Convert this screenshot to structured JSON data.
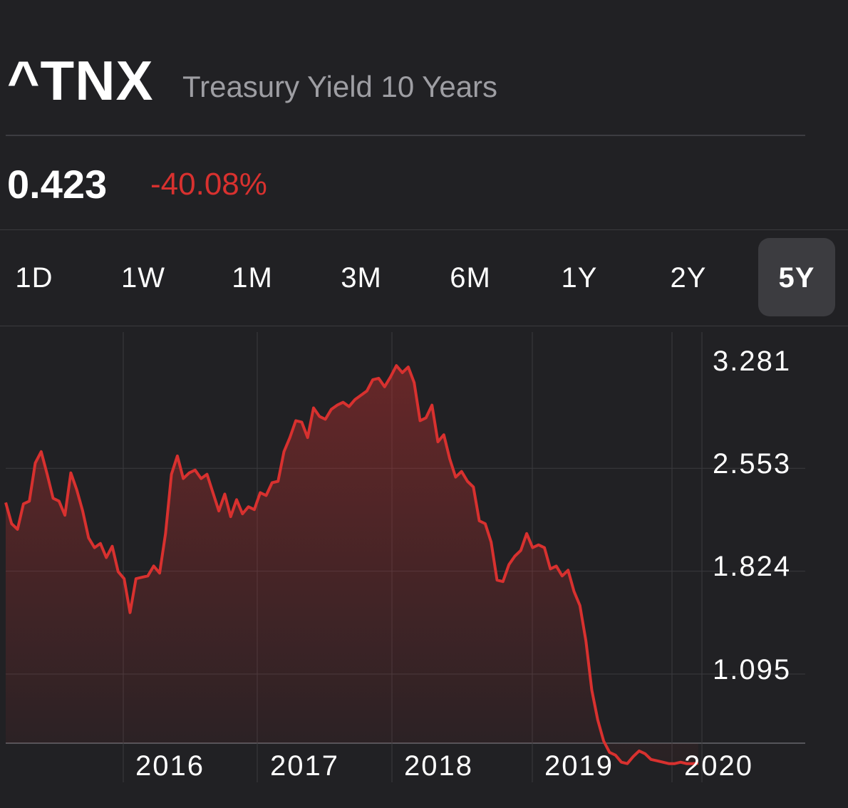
{
  "quote": {
    "symbol": "^TNX",
    "name": "Treasury Yield 10 Years",
    "price": "0.423",
    "change": "-40.08%",
    "change_color": "#d8312f"
  },
  "ranges": [
    {
      "label": "1D",
      "active": false
    },
    {
      "label": "1W",
      "active": false
    },
    {
      "label": "1M",
      "active": false
    },
    {
      "label": "3M",
      "active": false
    },
    {
      "label": "6M",
      "active": false
    },
    {
      "label": "1Y",
      "active": false
    },
    {
      "label": "2Y",
      "active": false
    },
    {
      "label": "5Y",
      "active": true
    }
  ],
  "chart_data": {
    "type": "area",
    "line_color": "#d8312f",
    "y_ticks": [
      "3.281",
      "2.553",
      "1.824",
      "1.095"
    ],
    "y_tick_values": [
      3.281,
      2.553,
      1.824,
      1.095
    ],
    "x_ticks": [
      "2016",
      "2017",
      "2018",
      "2019",
      "2020"
    ],
    "x_tick_values": [
      2016.0,
      2017.0,
      2018.0,
      2019.05,
      2020.0
    ],
    "xlim": [
      2015.15,
      2020.8
    ],
    "ylim": [
      0.366,
      3.5
    ],
    "grid": true,
    "x": [
      2015.15,
      2015.17,
      2015.2,
      2015.25,
      2015.3,
      2015.35,
      2015.4,
      2015.43,
      2015.47,
      2015.5,
      2015.55,
      2015.6,
      2015.65,
      2015.7,
      2015.73,
      2015.77,
      2015.8,
      2015.85,
      2015.9,
      2015.95,
      2015.98,
      2016.0,
      2016.03,
      2016.07,
      2016.1,
      2016.14,
      2016.17,
      2016.2,
      2016.23,
      2016.27,
      2016.3,
      2016.35,
      2016.38,
      2016.42,
      2016.45,
      2016.5,
      2016.55,
      2016.6,
      2016.63,
      2016.67,
      2016.73,
      2016.77,
      2016.8,
      2016.84,
      2016.88,
      2016.92,
      2016.95,
      2017.0,
      2017.05,
      2017.1,
      2017.15,
      2017.2,
      2017.27,
      2017.3,
      2017.35,
      2017.4,
      2017.45,
      2017.48,
      2017.52,
      2017.57,
      2017.6,
      2017.65,
      2017.7,
      2017.75,
      2017.8,
      2017.85,
      2017.88,
      2017.92,
      2017.97,
      2018.02,
      2018.08,
      2018.12,
      2018.18,
      2018.22,
      2018.27,
      2018.32,
      2018.38,
      2018.42,
      2018.47,
      2018.52,
      2018.57,
      2018.62,
      2018.67,
      2018.72,
      2018.75,
      2018.8,
      2018.85,
      2018.9,
      2018.95,
      2019.0,
      2019.05,
      2019.1,
      2019.15,
      2019.2,
      2019.25,
      2019.3,
      2019.33,
      2019.38,
      2019.42,
      2019.47,
      2019.52,
      2019.56,
      2019.59,
      2019.62,
      2019.65,
      2019.7,
      2019.75,
      2019.8,
      2019.85,
      2019.9,
      2019.95,
      2019.98,
      2020.0,
      2020.04,
      2020.07,
      2020.1,
      2020.12,
      2020.14
    ],
    "y": [
      2.27,
      2.12,
      2.08,
      2.26,
      2.28,
      2.55,
      2.63,
      2.47,
      2.3,
      2.28,
      2.18,
      2.48,
      2.36,
      2.21,
      2.02,
      1.95,
      1.98,
      1.88,
      1.96,
      1.78,
      1.73,
      1.49,
      1.73,
      1.74,
      1.75,
      1.82,
      1.77,
      2.05,
      2.47,
      2.6,
      2.44,
      2.48,
      2.5,
      2.44,
      2.47,
      2.34,
      2.21,
      2.33,
      2.17,
      2.29,
      2.19,
      2.24,
      2.22,
      2.34,
      2.32,
      2.41,
      2.42,
      2.63,
      2.73,
      2.85,
      2.84,
      2.73,
      2.94,
      2.88,
      2.86,
      2.93,
      2.96,
      2.98,
      2.95,
      3.0,
      3.03,
      3.06,
      3.14,
      3.15,
      3.09,
      3.16,
      3.24,
      3.19,
      3.23,
      3.12,
      2.85,
      2.87,
      2.96,
      2.7,
      2.75,
      2.58,
      2.45,
      2.49,
      2.42,
      2.38,
      2.14,
      2.12,
      1.99,
      1.72,
      1.71,
      1.83,
      1.89,
      1.93,
      2.05,
      1.95,
      1.97,
      1.95,
      1.8,
      1.82,
      1.75,
      1.79,
      1.64,
      1.54,
      1.29,
      0.94,
      0.73,
      0.58,
      0.5,
      0.48,
      0.43,
      0.42,
      0.47,
      0.51,
      0.49,
      0.45,
      0.44,
      0.43,
      0.42,
      0.42,
      0.43,
      0.42,
      0.42,
      0.423
    ]
  }
}
